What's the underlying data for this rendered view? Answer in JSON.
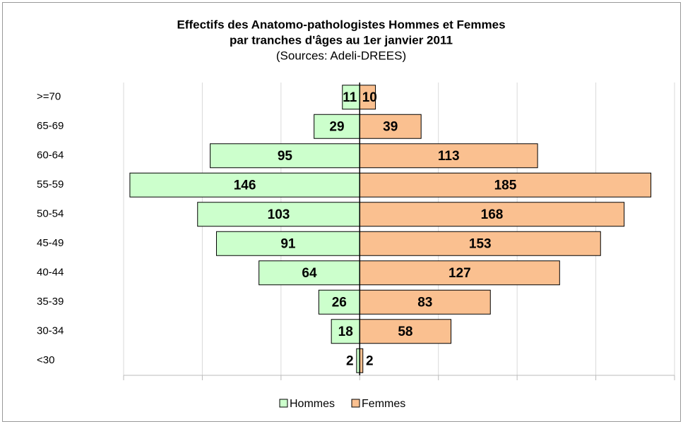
{
  "chart_data": {
    "type": "pyramid",
    "title": [
      "Effectifs des Anatomo-pathologistes Hommes et Femmes",
      "par tranches d'âges au 1er janvier 2011"
    ],
    "subtitle": "(Sources: Adeli-DREES)",
    "categories": [
      "<30",
      "30-34",
      "35-39",
      "40-44",
      "45-49",
      "50-54",
      "55-59",
      "60-64",
      "65-69",
      ">=70"
    ],
    "series": [
      {
        "name": "Hommes",
        "color": "#ccffcc",
        "side": "left",
        "values": [
          2,
          18,
          26,
          64,
          91,
          103,
          146,
          95,
          29,
          11
        ]
      },
      {
        "name": "Femmes",
        "color": "#fac090",
        "side": "right",
        "values": [
          2,
          58,
          83,
          127,
          153,
          168,
          185,
          113,
          39,
          10
        ]
      }
    ],
    "xlim": [
      -150,
      200
    ],
    "xticks": [
      -150,
      -100,
      -50,
      0,
      50,
      100,
      150,
      200
    ],
    "grid": true,
    "legend": "bottom"
  }
}
